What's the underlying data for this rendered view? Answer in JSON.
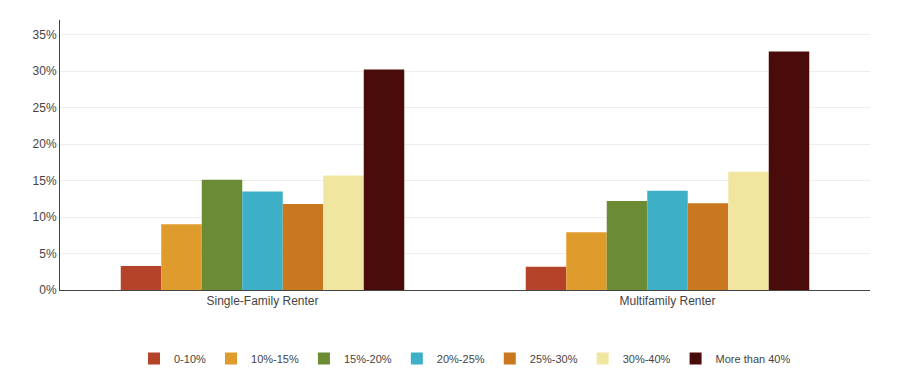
{
  "chart_data": {
    "type": "bar",
    "categories": [
      "Single-Family Renter",
      "Multifamily Renter"
    ],
    "series": [
      {
        "name": "0-10%",
        "color": "#b5432a",
        "values": [
          3.3,
          3.2
        ]
      },
      {
        "name": "10%-15%",
        "color": "#e09b2d",
        "values": [
          9.0,
          7.9
        ]
      },
      {
        "name": "15%-20%",
        "color": "#6b8c35",
        "values": [
          15.1,
          12.2
        ]
      },
      {
        "name": "20%-25%",
        "color": "#3db0c8",
        "values": [
          13.5,
          13.6
        ]
      },
      {
        "name": "25%-30%",
        "color": "#c97820",
        "values": [
          11.8,
          11.9
        ]
      },
      {
        "name": "30%-40%",
        "color": "#f0e6a0",
        "values": [
          15.7,
          16.2
        ]
      },
      {
        "name": "More than 40%",
        "color": "#4a0c0a",
        "values": [
          30.2,
          32.7
        ]
      }
    ],
    "ylim": [
      0,
      37
    ],
    "yticks": [
      {
        "value": 0,
        "label": "0%"
      },
      {
        "value": 5,
        "label": "5%"
      },
      {
        "value": 10,
        "label": "10%"
      },
      {
        "value": 15,
        "label": "15%"
      },
      {
        "value": 20,
        "label": "20%"
      },
      {
        "value": 25,
        "label": "25%"
      },
      {
        "value": 30,
        "label": "30%"
      },
      {
        "value": 35,
        "label": "35%"
      }
    ],
    "grid": true,
    "legend": "bottom"
  }
}
